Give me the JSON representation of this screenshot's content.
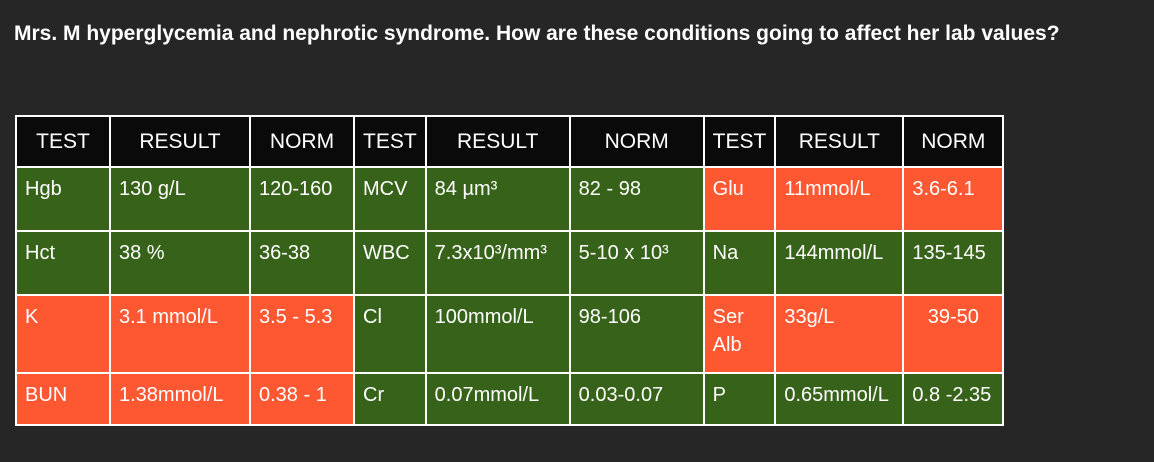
{
  "title": "Mrs. M hyperglycemia and nephrotic syndrome. How are these conditions going to affect her lab values?",
  "colors": {
    "background": "#262626",
    "header": "#0a0a0a",
    "normal": "#376219",
    "abnormal": "#fe5832",
    "border": "#ffffff"
  },
  "table": {
    "headers": [
      "TEST",
      "RESULT",
      "NORM",
      "TEST",
      "RESULT",
      "NORM",
      "TEST",
      "RESULT",
      "NORM"
    ],
    "rows": [
      {
        "cells": [
          {
            "text": "Hgb",
            "status": "normal"
          },
          {
            "text": "130 g/L",
            "status": "normal"
          },
          {
            "text": "120-160",
            "status": "normal"
          },
          {
            "text": "MCV",
            "status": "normal"
          },
          {
            "text": "84 µm³",
            "status": "normal"
          },
          {
            "text": "82 - 98",
            "status": "normal"
          },
          {
            "text": "Glu",
            "status": "abnormal"
          },
          {
            "text": "11mmol/L",
            "status": "abnormal"
          },
          {
            "text": "3.6-6.1",
            "status": "abnormal"
          }
        ]
      },
      {
        "cells": [
          {
            "text": "Hct",
            "status": "normal"
          },
          {
            "text": "38 %",
            "status": "normal"
          },
          {
            "text": "36-38",
            "status": "normal"
          },
          {
            "text": "WBC",
            "status": "normal"
          },
          {
            "text": "7.3x10³/mm³",
            "status": "normal"
          },
          {
            "text": "5-10 x 10³",
            "status": "normal"
          },
          {
            "text": "Na",
            "status": "normal"
          },
          {
            "text": "144mmol/L",
            "status": "normal"
          },
          {
            "text": "135-145",
            "status": "normal"
          }
        ]
      },
      {
        "cells": [
          {
            "text": "K",
            "status": "abnormal"
          },
          {
            "text": "3.1 mmol/L",
            "status": "abnormal"
          },
          {
            "text": "3.5 - 5.3",
            "status": "abnormal"
          },
          {
            "text": "Cl",
            "status": "normal"
          },
          {
            "text": "100mmol/L",
            "status": "normal"
          },
          {
            "text": "98-106",
            "status": "normal"
          },
          {
            "text": "Ser",
            "text2": "Alb",
            "status": "abnormal"
          },
          {
            "text": "33g/L",
            "status": "abnormal"
          },
          {
            "text": "39-50",
            "status": "abnormal",
            "align": "right"
          }
        ]
      },
      {
        "cells": [
          {
            "text": "BUN",
            "status": "abnormal"
          },
          {
            "text": "1.38mmol/L",
            "status": "abnormal"
          },
          {
            "text": "0.38 - 1",
            "status": "abnormal"
          },
          {
            "text": "Cr",
            "status": "normal"
          },
          {
            "text": "0.07mmol/L",
            "status": "normal"
          },
          {
            "text": "0.03-0.07",
            "status": "normal"
          },
          {
            "text": "P",
            "status": "normal"
          },
          {
            "text": "0.65mmol/L",
            "status": "normal"
          },
          {
            "text": "0.8 -2.35",
            "status": "normal"
          }
        ]
      }
    ]
  }
}
